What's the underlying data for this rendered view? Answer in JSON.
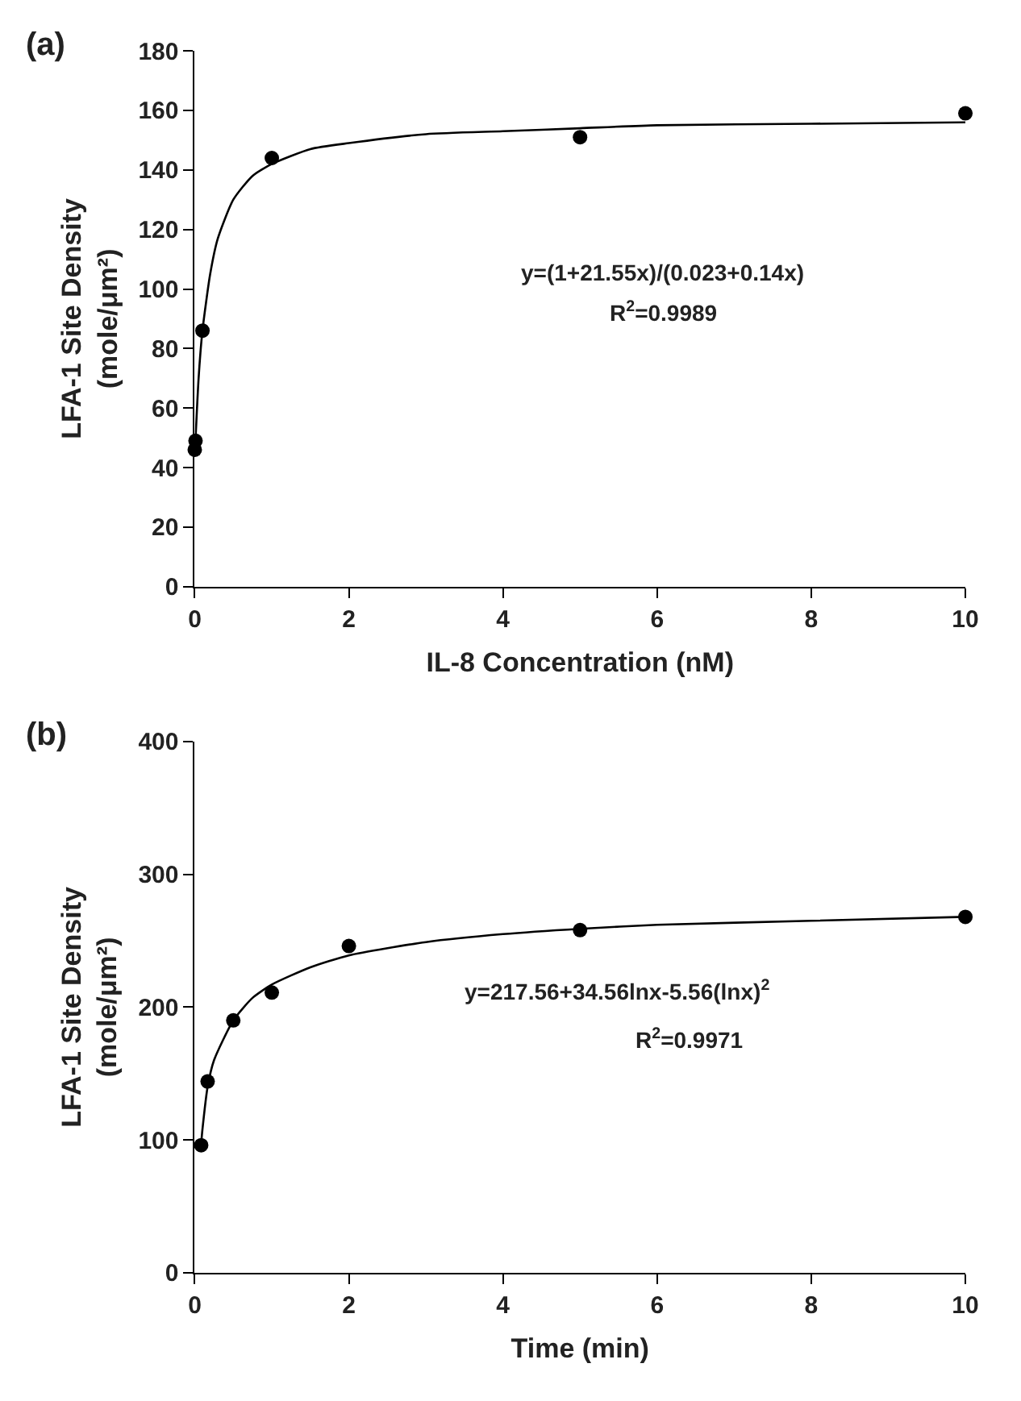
{
  "chart_data": [
    {
      "type": "scatter",
      "title": "(a)",
      "xlabel": "IL-8 Concentration (nM)",
      "ylabel": "LFA-1 Site Density\n(mole/μm²)",
      "xlim": [
        0,
        10
      ],
      "xticks": [
        0,
        2,
        4,
        6,
        8,
        10
      ],
      "ylim": [
        0,
        180
      ],
      "yticks": [
        0,
        20,
        40,
        60,
        80,
        100,
        120,
        140,
        160,
        180
      ],
      "series": [
        {
          "marker": "circle",
          "color": "#000000",
          "x": [
            0,
            0.01,
            0.1,
            1,
            5,
            10
          ],
          "values": [
            46,
            49,
            86,
            144,
            151,
            159
          ]
        },
        {
          "type": "line",
          "marker": "none",
          "line_style": "solid",
          "color": "#000000",
          "x": [
            0,
            0.05,
            0.1,
            0.2,
            0.3,
            0.5,
            0.75,
            1,
            1.5,
            2,
            3,
            4,
            5,
            6,
            8,
            10
          ],
          "values": [
            44,
            70,
            86,
            105,
            117,
            130,
            138,
            142,
            147,
            149,
            152,
            153,
            154,
            155,
            155.5,
            156
          ]
        }
      ],
      "annotations": [
        "y=(1+21.55x)/(0.023+0.14x)",
        "R$^{2}$=0.9989"
      ]
    },
    {
      "type": "scatter",
      "title": "(b)",
      "xlabel": "Time (min)",
      "ylabel": "LFA-1 Site Density\n(mole/μm²)",
      "xlim": [
        0,
        10
      ],
      "xticks": [
        0,
        2,
        4,
        6,
        8,
        10
      ],
      "ylim": [
        0,
        400
      ],
      "yticks": [
        0,
        100,
        200,
        300,
        400
      ],
      "series": [
        {
          "marker": "circle",
          "color": "#000000",
          "x": [
            0.083,
            0.167,
            0.5,
            1,
            2,
            5,
            10
          ],
          "values": [
            96,
            144,
            190,
            211,
            246,
            258,
            268
          ]
        },
        {
          "type": "line",
          "marker": "none",
          "line_style": "solid",
          "color": "#000000",
          "x": [
            0.083,
            0.1,
            0.167,
            0.25,
            0.5,
            0.75,
            1,
            1.5,
            2,
            3,
            4,
            5,
            6,
            8,
            10
          ],
          "values": [
            97,
            108,
            140,
            160,
            190,
            207,
            217,
            230,
            239,
            249,
            255,
            259,
            262,
            265,
            268
          ]
        }
      ],
      "annotations": [
        "y=217.56+34.56lnx-5.56(lnx)$^{2}$",
        "R$^{2}$=0.9971"
      ]
    }
  ]
}
